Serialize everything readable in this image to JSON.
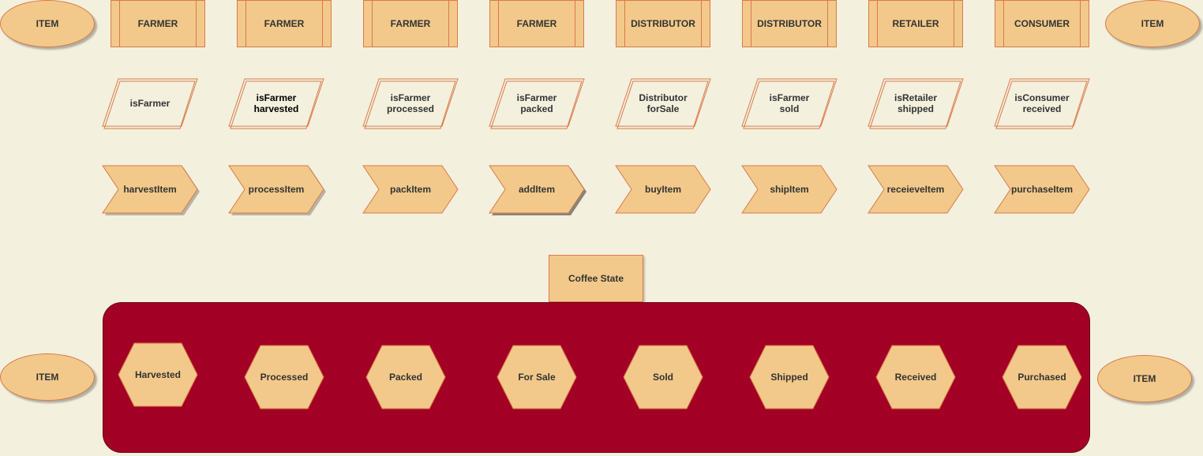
{
  "colors": {
    "background": "#f4f0de",
    "shape_fill": "#f2c98a",
    "shape_stroke": "#d97a4a",
    "container_fill": "#a20025"
  },
  "ellipses": {
    "top_left": "ITEM",
    "top_right": "ITEM",
    "bottom_left": "ITEM",
    "bottom_right": "ITEM"
  },
  "roles": [
    "FARMER",
    "FARMER",
    "FARMER",
    "FARMER",
    "DISTRIBUTOR",
    "DISTRIBUTOR",
    "RETAILER",
    "CONSUMER"
  ],
  "checks": [
    {
      "text": "isFarmer",
      "dark": false
    },
    {
      "text": "isFarmer\nharvested",
      "dark": true
    },
    {
      "text": "isFarmer\nprocessed",
      "dark": false
    },
    {
      "text": "isFarmer\npacked",
      "dark": false
    },
    {
      "text": "Distributor\nforSale",
      "dark": false
    },
    {
      "text": "isFarmer\nsold",
      "dark": false
    },
    {
      "text": "isRetailer\nshipped",
      "dark": false
    },
    {
      "text": "isConsumer\nreceived",
      "dark": false
    }
  ],
  "functions": [
    "harvestItem",
    "processItem",
    "packItem",
    "addItem",
    "buyItem",
    "shipItem",
    "receieveItem",
    "purchaseItem"
  ],
  "state_title": "Coffee State",
  "states": [
    "Harvested",
    "Processed",
    "Packed",
    "For Sale",
    "Sold",
    "Shipped",
    "Received",
    "Purchased"
  ]
}
